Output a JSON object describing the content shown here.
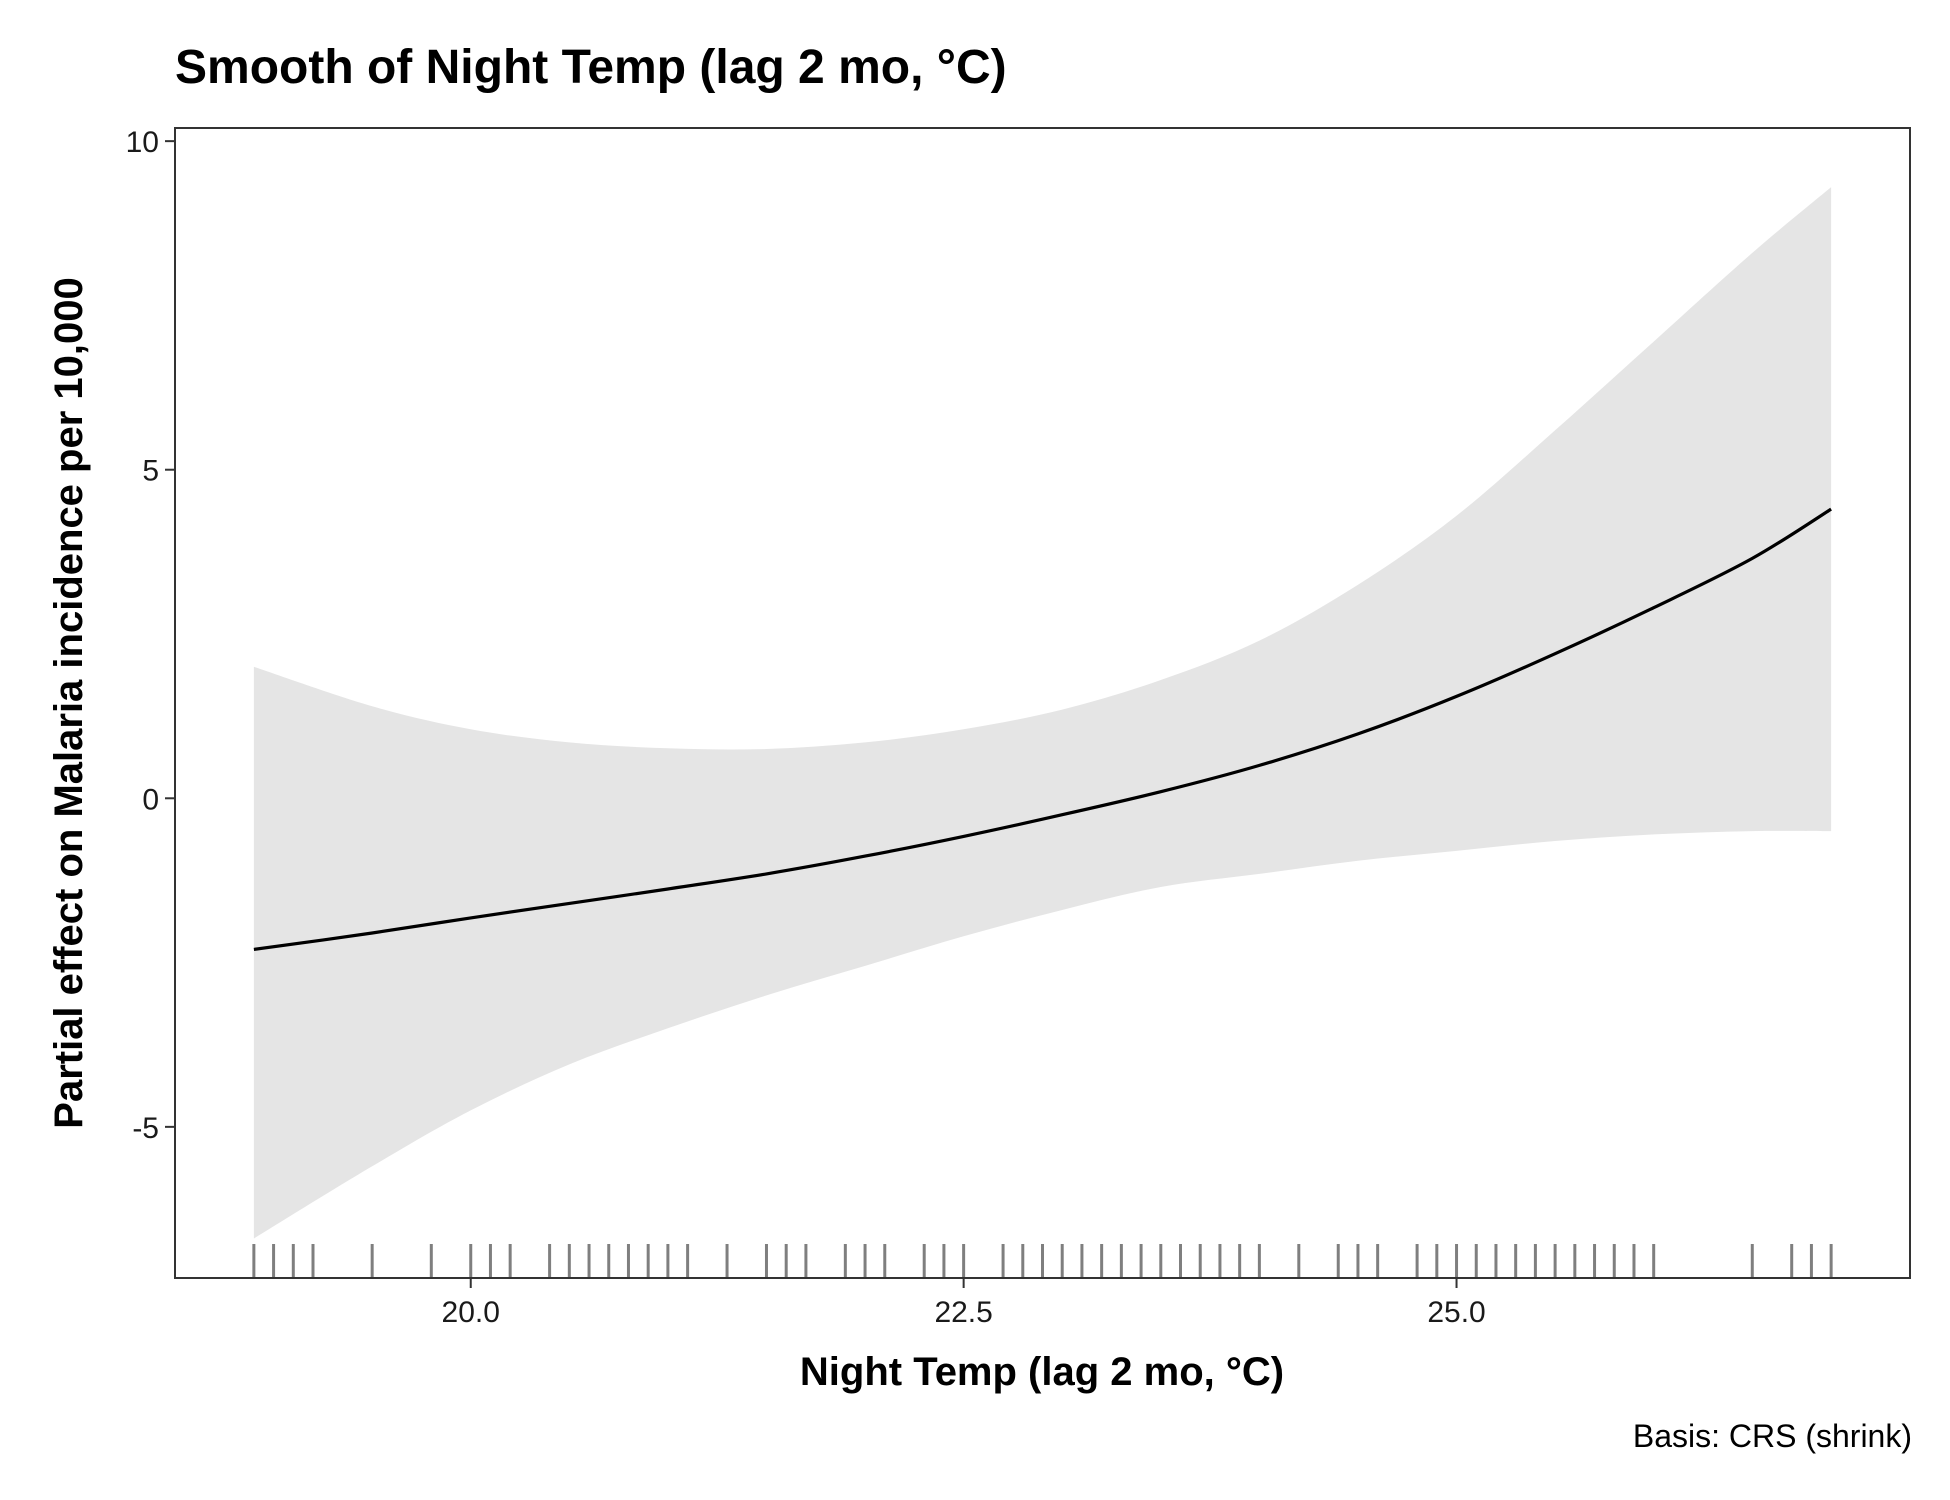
{
  "chart_data": {
    "type": "line",
    "title": "Smooth of Night Temp (lag 2 mo, °C)",
    "xlabel": "Night Temp (lag 2 mo, °C)",
    "ylabel": "Partial effect on Malaria incidence per 10,000",
    "caption": "Basis: CRS (shrink)",
    "xlim": [
      18.5,
      27.3
    ],
    "ylim": [
      -7.3,
      10.2
    ],
    "x_ticks": [
      {
        "value": 20.0,
        "label": "20.0"
      },
      {
        "value": 22.5,
        "label": "22.5"
      },
      {
        "value": 25.0,
        "label": "25.0"
      }
    ],
    "y_ticks": [
      {
        "value": -5,
        "label": "-5"
      },
      {
        "value": 0,
        "label": "0"
      },
      {
        "value": 5,
        "label": "5"
      },
      {
        "value": 10,
        "label": "10"
      }
    ],
    "grid": false,
    "colors": {
      "line": "#000000",
      "ribbon": "#e5e5e5",
      "rug": "#7f7f7f",
      "frame": "#333333"
    },
    "smooth": {
      "x": [
        18.9,
        19.5,
        20.0,
        20.5,
        21.0,
        21.5,
        22.0,
        22.5,
        23.0,
        23.5,
        24.0,
        24.5,
        25.0,
        25.5,
        26.0,
        26.5,
        26.9
      ],
      "fit": [
        -2.3,
        -2.05,
        -1.82,
        -1.6,
        -1.38,
        -1.15,
        -0.88,
        -0.58,
        -0.25,
        0.1,
        0.5,
        0.98,
        1.55,
        2.2,
        2.9,
        3.65,
        4.4
      ],
      "upper": [
        2.0,
        1.4,
        1.05,
        0.85,
        0.76,
        0.75,
        0.85,
        1.05,
        1.35,
        1.8,
        2.4,
        3.25,
        4.3,
        5.6,
        6.95,
        8.3,
        9.3
      ],
      "lower": [
        -6.7,
        -5.6,
        -4.75,
        -4.05,
        -3.5,
        -3.0,
        -2.55,
        -2.1,
        -1.7,
        -1.35,
        -1.15,
        -0.95,
        -0.8,
        -0.65,
        -0.55,
        -0.5,
        -0.5
      ]
    },
    "rug": [
      18.9,
      19.0,
      19.1,
      19.2,
      19.5,
      19.8,
      20.0,
      20.1,
      20.2,
      20.4,
      20.5,
      20.6,
      20.7,
      20.8,
      20.9,
      21.0,
      21.1,
      21.3,
      21.5,
      21.6,
      21.7,
      21.9,
      22.0,
      22.1,
      22.3,
      22.4,
      22.5,
      22.7,
      22.8,
      22.9,
      23.0,
      23.1,
      23.2,
      23.3,
      23.4,
      23.5,
      23.6,
      23.7,
      23.8,
      23.9,
      24.0,
      24.2,
      24.4,
      24.5,
      24.6,
      24.8,
      24.9,
      25.0,
      25.1,
      25.2,
      25.3,
      25.4,
      25.5,
      25.6,
      25.7,
      25.8,
      25.9,
      26.0,
      26.5,
      26.7,
      26.8,
      26.9
    ]
  }
}
